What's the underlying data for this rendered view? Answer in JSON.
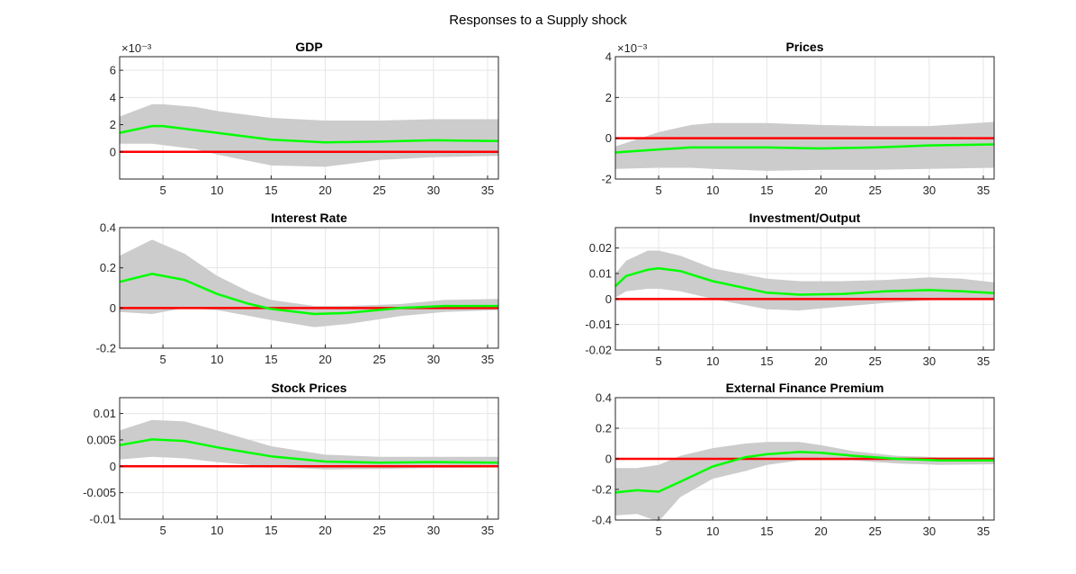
{
  "figure": {
    "title": "Responses to a Supply shock"
  },
  "colors": {
    "band": "#cccccc",
    "median": "#00ff00",
    "zero": "#ff0000",
    "grid": "#e6e6e6",
    "axis": "#262626"
  },
  "chart_data": [
    {
      "type": "area",
      "title": "GDP",
      "xlabel": "",
      "ylabel": "",
      "exponent_label": "×10⁻³",
      "xlim": [
        1,
        36
      ],
      "ylim": [
        -2,
        7
      ],
      "xticks": [
        5,
        10,
        15,
        20,
        25,
        30,
        35
      ],
      "yticks": [
        0,
        2,
        4,
        6
      ],
      "ytick_labels": [
        "0",
        "2",
        "4",
        "6"
      ],
      "grid": true,
      "zero_line": 0,
      "x": [
        1,
        4,
        5,
        8,
        10,
        15,
        20,
        25,
        30,
        36
      ],
      "series": [
        {
          "name": "upper",
          "values": [
            2.6,
            3.5,
            3.5,
            3.3,
            3.0,
            2.5,
            2.3,
            2.3,
            2.4,
            2.4
          ]
        },
        {
          "name": "median",
          "values": [
            1.4,
            1.9,
            1.9,
            1.6,
            1.4,
            0.9,
            0.7,
            0.75,
            0.85,
            0.8
          ]
        },
        {
          "name": "lower",
          "values": [
            0.6,
            0.6,
            0.5,
            0.2,
            -0.2,
            -1.0,
            -1.1,
            -0.6,
            -0.4,
            -0.3
          ]
        }
      ]
    },
    {
      "type": "area",
      "title": "Prices",
      "xlabel": "",
      "ylabel": "",
      "exponent_label": "×10⁻³",
      "xlim": [
        1,
        36
      ],
      "ylim": [
        -2,
        4
      ],
      "xticks": [
        5,
        10,
        15,
        20,
        25,
        30,
        35
      ],
      "yticks": [
        -2,
        0,
        2,
        4
      ],
      "ytick_labels": [
        "-2",
        "0",
        "2",
        "4"
      ],
      "grid": true,
      "zero_line": 0,
      "x": [
        1,
        5,
        8,
        10,
        15,
        20,
        25,
        30,
        36
      ],
      "series": [
        {
          "name": "upper",
          "values": [
            -0.4,
            0.3,
            0.65,
            0.75,
            0.75,
            0.65,
            0.6,
            0.6,
            0.8
          ]
        },
        {
          "name": "median",
          "values": [
            -0.7,
            -0.55,
            -0.45,
            -0.45,
            -0.45,
            -0.5,
            -0.45,
            -0.35,
            -0.3
          ]
        },
        {
          "name": "lower",
          "values": [
            -1.5,
            -1.45,
            -1.45,
            -1.5,
            -1.6,
            -1.55,
            -1.55,
            -1.5,
            -1.45
          ]
        }
      ]
    },
    {
      "type": "area",
      "title": "Interest Rate",
      "xlabel": "",
      "ylabel": "",
      "xlim": [
        1,
        36
      ],
      "ylim": [
        -0.2,
        0.4
      ],
      "xticks": [
        5,
        10,
        15,
        20,
        25,
        30,
        35
      ],
      "yticks": [
        -0.2,
        0,
        0.2,
        0.4
      ],
      "ytick_labels": [
        "-0.2",
        "0",
        "0.2",
        "0.4"
      ],
      "grid": true,
      "zero_line": 0,
      "x": [
        1,
        4,
        7,
        10,
        13,
        15,
        19,
        22,
        27,
        31,
        36
      ],
      "series": [
        {
          "name": "upper",
          "values": [
            0.26,
            0.34,
            0.27,
            0.16,
            0.08,
            0.04,
            0.01,
            0.01,
            0.02,
            0.04,
            0.045
          ]
        },
        {
          "name": "median",
          "values": [
            0.13,
            0.17,
            0.14,
            0.07,
            0.02,
            -0.005,
            -0.03,
            -0.025,
            0.0,
            0.01,
            0.01
          ]
        },
        {
          "name": "lower",
          "values": [
            -0.02,
            -0.03,
            0.0,
            -0.01,
            -0.04,
            -0.06,
            -0.095,
            -0.08,
            -0.04,
            -0.02,
            -0.01
          ]
        }
      ]
    },
    {
      "type": "area",
      "title": "Investment/Output",
      "xlabel": "",
      "ylabel": "",
      "xlim": [
        1,
        36
      ],
      "ylim": [
        -0.02,
        0.028
      ],
      "xticks": [
        5,
        10,
        15,
        20,
        25,
        30,
        35
      ],
      "yticks": [
        -0.02,
        -0.01,
        0,
        0.01,
        0.02
      ],
      "ytick_labels": [
        "-0.02",
        "-0.01",
        "0",
        "0.01",
        "0.02"
      ],
      "grid": true,
      "zero_line": 0,
      "x": [
        1,
        2,
        4,
        5,
        7,
        10,
        15,
        18,
        22,
        26,
        30,
        33,
        36
      ],
      "series": [
        {
          "name": "upper",
          "values": [
            0.01,
            0.015,
            0.019,
            0.019,
            0.017,
            0.012,
            0.008,
            0.007,
            0.007,
            0.0075,
            0.0085,
            0.008,
            0.0065
          ]
        },
        {
          "name": "median",
          "values": [
            0.005,
            0.009,
            0.0115,
            0.012,
            0.011,
            0.007,
            0.0025,
            0.0017,
            0.002,
            0.003,
            0.0035,
            0.003,
            0.0023
          ]
        },
        {
          "name": "lower",
          "values": [
            0.0005,
            0.003,
            0.004,
            0.004,
            0.003,
            0.0,
            -0.004,
            -0.0045,
            -0.003,
            -0.0015,
            -0.0005,
            -0.0002,
            -0.0002
          ]
        }
      ]
    },
    {
      "type": "area",
      "title": "Stock Prices",
      "xlabel": "",
      "ylabel": "",
      "xlim": [
        1,
        36
      ],
      "ylim": [
        -0.01,
        0.013
      ],
      "xticks": [
        5,
        10,
        15,
        20,
        25,
        30,
        35
      ],
      "yticks": [
        -0.01,
        -0.005,
        0,
        0.005,
        0.01
      ],
      "ytick_labels": [
        "-0.01",
        "-0.005",
        "0",
        "0.005",
        "0.01"
      ],
      "grid": true,
      "zero_line": 0,
      "x": [
        1,
        4,
        7,
        10,
        15,
        20,
        25,
        30,
        36
      ],
      "series": [
        {
          "name": "upper",
          "values": [
            0.0068,
            0.0088,
            0.0085,
            0.0068,
            0.0038,
            0.0022,
            0.0018,
            0.0018,
            0.0018
          ]
        },
        {
          "name": "median",
          "values": [
            0.004,
            0.0051,
            0.0048,
            0.0036,
            0.0019,
            0.0009,
            0.0007,
            0.0008,
            0.0007
          ]
        },
        {
          "name": "lower",
          "values": [
            0.0013,
            0.0018,
            0.0015,
            0.0008,
            -0.0001,
            -0.0006,
            -0.0005,
            -0.0003,
            -0.0002
          ]
        }
      ]
    },
    {
      "type": "area",
      "title": "External Finance Premium",
      "xlabel": "",
      "ylabel": "",
      "xlim": [
        1,
        36
      ],
      "ylim": [
        -0.4,
        0.4
      ],
      "xticks": [
        5,
        10,
        15,
        20,
        25,
        30,
        35
      ],
      "yticks": [
        -0.4,
        -0.2,
        0,
        0.2,
        0.4
      ],
      "ytick_labels": [
        "-0.4",
        "-0.2",
        "0",
        "0.2",
        "0.4"
      ],
      "grid": true,
      "zero_line": 0,
      "x": [
        1,
        3,
        5,
        7,
        10,
        13,
        15,
        18,
        20,
        23,
        27,
        31,
        36
      ],
      "series": [
        {
          "name": "upper",
          "values": [
            -0.06,
            -0.06,
            -0.04,
            0.02,
            0.07,
            0.1,
            0.11,
            0.11,
            0.09,
            0.05,
            0.02,
            0.01,
            0.01
          ]
        },
        {
          "name": "median",
          "values": [
            -0.22,
            -0.205,
            -0.215,
            -0.15,
            -0.05,
            0.01,
            0.03,
            0.045,
            0.04,
            0.02,
            0.0,
            -0.01,
            -0.01
          ]
        },
        {
          "name": "lower",
          "values": [
            -0.37,
            -0.36,
            -0.41,
            -0.25,
            -0.13,
            -0.08,
            -0.04,
            -0.01,
            -0.01,
            -0.01,
            -0.03,
            -0.04,
            -0.035
          ]
        }
      ]
    }
  ]
}
